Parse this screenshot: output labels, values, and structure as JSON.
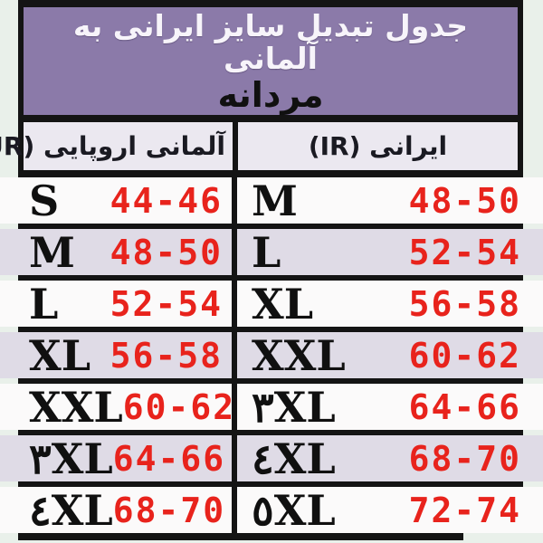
{
  "title": {
    "line1": "جدول تبدیل سایز ایرانی به آلمانی",
    "line2": "مردانه"
  },
  "headers": {
    "eur": "آلمانی اروپایی (EUR)",
    "ir": "ایرانی (IR)"
  },
  "table": {
    "rows": [
      {
        "eur_size": "S",
        "eur_range": "44-46",
        "ir_size": "M",
        "ir_range": "48-50"
      },
      {
        "eur_size": "M",
        "eur_range": "48-50",
        "ir_size": "L",
        "ir_range": "52-54"
      },
      {
        "eur_size": "L",
        "eur_range": "52-54",
        "ir_size": "XL",
        "ir_range": "56-58"
      },
      {
        "eur_size": "XL",
        "eur_range": "56-58",
        "ir_size": "XXL",
        "ir_range": "60-62"
      },
      {
        "eur_size": "XXL",
        "eur_range": "60-62",
        "ir_size": "۳XL",
        "ir_range": "64-66"
      },
      {
        "eur_size": "۳XL",
        "eur_range": "64-66",
        "ir_size": "٤XL",
        "ir_range": "68-70"
      },
      {
        "eur_size": "٤XL",
        "eur_range": "68-70",
        "ir_size": "٥XL",
        "ir_range": "72-74"
      }
    ]
  },
  "colors": {
    "purple": "#8b7aa9",
    "black": "#141414",
    "red": "#e8231c",
    "row-alt": "#dfdbe6",
    "row-white": "#fbfafa",
    "header-bg": "#ebe8f0",
    "page-bg": "#e9f0ea",
    "title-text": "#f7f4fa",
    "dark-text": "#101010"
  }
}
